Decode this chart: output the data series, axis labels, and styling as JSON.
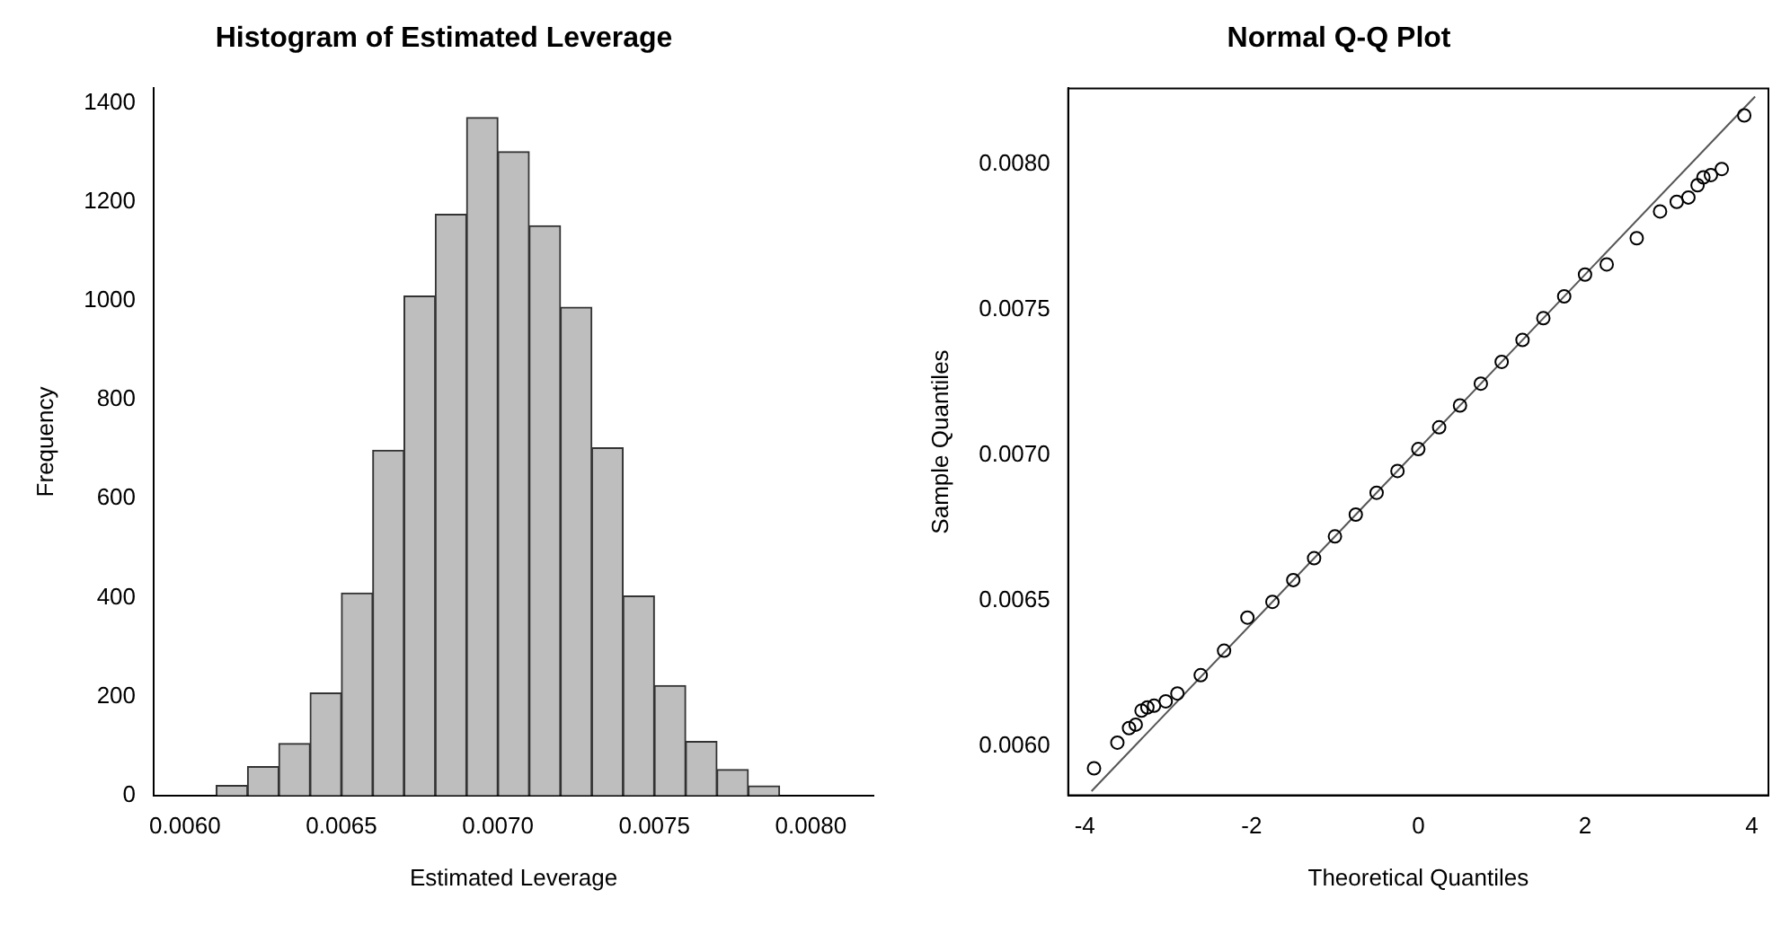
{
  "chart_data": [
    {
      "type": "histogram",
      "title": "Histogram of Estimated Leverage",
      "xlabel": "Estimated Leverage",
      "ylabel": "Frequency",
      "color": "#bebebe",
      "bins": [
        0.0059,
        0.006,
        0.0061,
        0.0062,
        0.0063,
        0.0064,
        0.0065,
        0.0066,
        0.0067,
        0.0068,
        0.0069,
        0.007,
        0.0071,
        0.0072,
        0.0073,
        0.0074,
        0.0075,
        0.0076,
        0.0077,
        0.0078,
        0.0079,
        0.008,
        0.0081,
        0.0082
      ],
      "values": [
        null,
        null,
        20,
        58,
        105,
        207,
        409,
        698,
        1010,
        1175,
        1371,
        1302,
        1152,
        987,
        703,
        403,
        222,
        109,
        52,
        19,
        null,
        null,
        null
      ],
      "xlim": [
        0.0059,
        0.0082
      ],
      "xticks": [
        {
          "value": 0.006,
          "label": "0.0060"
        },
        {
          "value": 0.0065,
          "label": "0.0065"
        },
        {
          "value": 0.007,
          "label": "0.0070"
        },
        {
          "value": 0.0075,
          "label": "0.0075"
        },
        {
          "value": 0.008,
          "label": "0.0080"
        }
      ],
      "ylim": [
        0,
        1430
      ],
      "yticks": [
        0,
        200,
        400,
        600,
        800,
        1000,
        1200,
        1400
      ],
      "grid": false
    },
    {
      "type": "scatter",
      "title": "Normal Q-Q Plot",
      "xlabel": "Theoretical Quantiles",
      "ylabel": "Sample Quantiles",
      "grid": false,
      "xlim": [
        -4.2,
        4.2
      ],
      "xticks": [
        -4,
        -2,
        0,
        2,
        4
      ],
      "ylim": [
        0.00583,
        0.00826
      ],
      "yticks": [
        {
          "value": 0.006,
          "label": "0.0060"
        },
        {
          "value": 0.0065,
          "label": "0.0065"
        },
        {
          "value": 0.007,
          "label": "0.0070"
        },
        {
          "value": 0.0075,
          "label": "0.0075"
        },
        {
          "value": 0.008,
          "label": "0.0080"
        }
      ],
      "series": [
        {
          "type": "scatter",
          "marker": "circle",
          "color": "#000000",
          "x": [
            -3.89,
            -3.61,
            -3.47,
            -3.39,
            -3.32,
            -3.25,
            -3.17,
            -3.03,
            -2.89,
            -2.61,
            -2.33,
            -2.05,
            -1.75,
            -1.5,
            -1.25,
            -1,
            -0.75,
            -0.5,
            -0.25,
            0,
            0.25,
            0.5,
            0.75,
            1,
            1.25,
            1.5,
            1.75,
            2,
            2.26,
            2.62,
            2.9,
            3.1,
            3.24,
            3.35,
            3.42,
            3.51,
            3.64,
            3.91
          ],
          "values": [
            0.005923,
            0.006011,
            0.006061,
            0.006073,
            0.006121,
            0.006132,
            0.006138,
            0.006153,
            0.00618,
            0.006243,
            0.006327,
            0.006441,
            0.006495,
            0.00657,
            0.006645,
            0.00672,
            0.006795,
            0.00687,
            0.006945,
            0.00702,
            0.007095,
            0.00717,
            0.007245,
            0.00732,
            0.007395,
            0.00747,
            0.007545,
            0.00762,
            0.007655,
            0.007745,
            0.007837,
            0.00787,
            0.007885,
            0.007927,
            0.007954,
            0.007962,
            0.007983,
            0.008167
          ]
        },
        {
          "type": "line",
          "marker": "none",
          "color": "#555555",
          "x": [
            -3.92,
            4.04
          ],
          "values": [
            0.005844,
            0.008232
          ]
        }
      ]
    }
  ]
}
